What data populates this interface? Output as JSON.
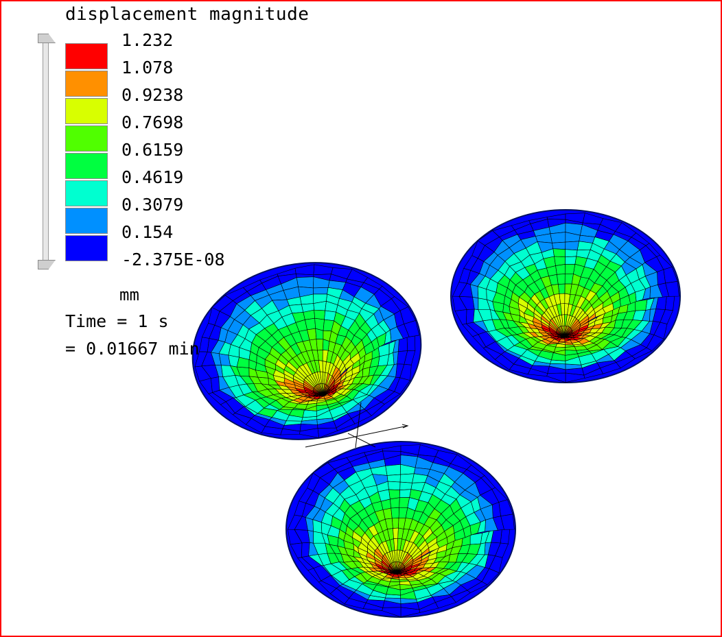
{
  "legend": {
    "title": "displacement magnitude",
    "units": "mm",
    "labels": [
      "1.232",
      "1.078",
      "0.9238",
      "0.7698",
      "0.6159",
      "0.4619",
      "0.3079",
      "0.154",
      "-2.375E-08"
    ],
    "bands": [
      {
        "color": "#ff0000",
        "from": "1.078",
        "to": "1.232"
      },
      {
        "color": "#ff9000",
        "from": "0.9238",
        "to": "1.078"
      },
      {
        "color": "#d8ff00",
        "from": "0.7698",
        "to": "0.9238"
      },
      {
        "color": "#50ff00",
        "from": "0.6159",
        "to": "0.7698"
      },
      {
        "color": "#00ff40",
        "from": "0.4619",
        "to": "0.6159"
      },
      {
        "color": "#00ffd0",
        "from": "0.3079",
        "to": "0.4619"
      },
      {
        "color": "#0090ff",
        "from": "0.154",
        "to": "0.3079"
      },
      {
        "color": "#0000ff",
        "from": "-2.375E-08",
        "to": "0.154"
      }
    ]
  },
  "time": {
    "line1": "Time = 1 s",
    "line2": "= 0.01667 min"
  },
  "colors": {
    "frame_border": "#ff0000",
    "background": "#ffffff",
    "mesh_line": "#000000"
  },
  "models": [
    {
      "name": "left-dish",
      "peak_level": 1.0
    },
    {
      "name": "right-dish",
      "peak_level": 1.0
    },
    {
      "name": "bottom-dish",
      "peak_level": 1.0
    }
  ]
}
